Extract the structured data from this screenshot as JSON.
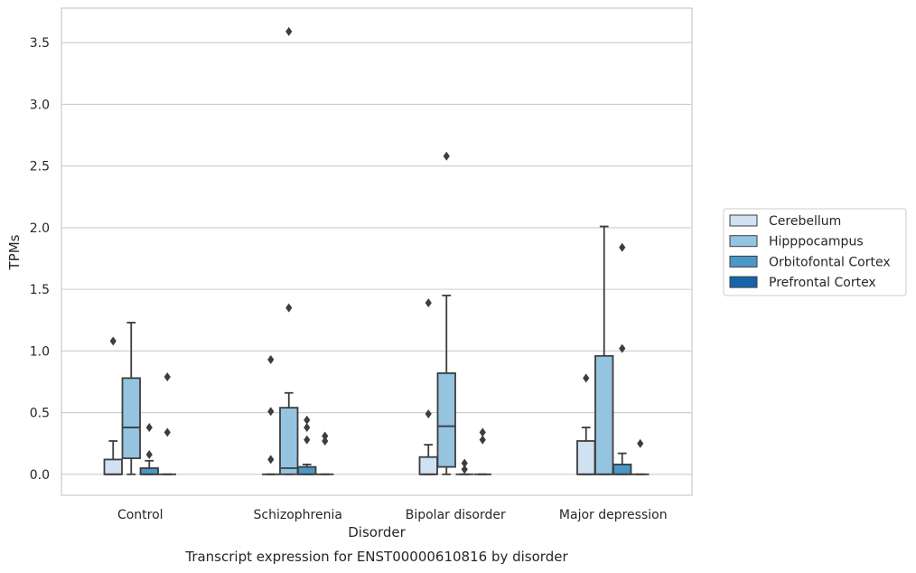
{
  "chart_data": {
    "type": "box",
    "title": "",
    "caption": "Transcript expression for ENST00000610816 by disorder",
    "xlabel": "Disorder",
    "ylabel": "TPMs",
    "ylim": [
      -0.17,
      3.78
    ],
    "yticks": [
      0.0,
      0.5,
      1.0,
      1.5,
      2.0,
      2.5,
      3.0,
      3.5
    ],
    "ytick_labels": [
      "0.0",
      "0.5",
      "1.0",
      "1.5",
      "2.0",
      "2.5",
      "3.0",
      "3.5"
    ],
    "grid": "horizontal",
    "legend_position": "right",
    "categories": [
      "Control",
      "Schizophrenia",
      "Bipolar disorder",
      "Major depression"
    ],
    "series": [
      {
        "name": "Cerebellum",
        "color": "#d0e1f2",
        "boxes": [
          {
            "whislo": 0.0,
            "q1": 0.0,
            "median": 0.0,
            "q3": 0.12,
            "whishi": 0.27,
            "fliers": [
              1.08
            ]
          },
          {
            "whislo": 0.0,
            "q1": 0.0,
            "median": 0.0,
            "q3": 0.0,
            "whishi": 0.0,
            "fliers": [
              0.93,
              0.51,
              0.12
            ]
          },
          {
            "whislo": 0.0,
            "q1": 0.0,
            "median": 0.0,
            "q3": 0.14,
            "whishi": 0.24,
            "fliers": [
              1.39,
              0.49
            ]
          },
          {
            "whislo": 0.0,
            "q1": 0.0,
            "median": 0.0,
            "q3": 0.27,
            "whishi": 0.38,
            "fliers": [
              0.78
            ]
          }
        ]
      },
      {
        "name": "Hipppocampus",
        "color": "#94c4df",
        "boxes": [
          {
            "whislo": 0.0,
            "q1": 0.13,
            "median": 0.38,
            "q3": 0.78,
            "whishi": 1.23,
            "fliers": []
          },
          {
            "whislo": 0.0,
            "q1": 0.0,
            "median": 0.05,
            "q3": 0.54,
            "whishi": 0.66,
            "fliers": [
              3.59,
              1.35
            ]
          },
          {
            "whislo": 0.0,
            "q1": 0.06,
            "median": 0.39,
            "q3": 0.82,
            "whishi": 1.45,
            "fliers": [
              2.58
            ]
          },
          {
            "whislo": 0.0,
            "q1": 0.0,
            "median": 0.0,
            "q3": 0.96,
            "whishi": 2.01,
            "fliers": []
          }
        ]
      },
      {
        "name": "Orbitofontal Cortex",
        "color": "#4a98c9",
        "boxes": [
          {
            "whislo": 0.0,
            "q1": 0.0,
            "median": 0.0,
            "q3": 0.05,
            "whishi": 0.11,
            "fliers": [
              0.38,
              0.16
            ]
          },
          {
            "whislo": 0.0,
            "q1": 0.0,
            "median": 0.0,
            "q3": 0.06,
            "whishi": 0.08,
            "fliers": [
              0.44,
              0.38,
              0.28
            ]
          },
          {
            "whislo": 0.0,
            "q1": 0.0,
            "median": 0.0,
            "q3": 0.0,
            "whishi": 0.0,
            "fliers": [
              0.09,
              0.04
            ]
          },
          {
            "whislo": 0.0,
            "q1": 0.0,
            "median": 0.0,
            "q3": 0.08,
            "whishi": 0.17,
            "fliers": [
              1.84,
              1.02
            ]
          }
        ]
      },
      {
        "name": "Prefrontal Cortex",
        "color": "#1764ab",
        "boxes": [
          {
            "whislo": 0.0,
            "q1": 0.0,
            "median": 0.0,
            "q3": 0.0,
            "whishi": 0.0,
            "fliers": [
              0.79,
              0.34
            ]
          },
          {
            "whislo": 0.0,
            "q1": 0.0,
            "median": 0.0,
            "q3": 0.0,
            "whishi": 0.0,
            "fliers": [
              0.31,
              0.27
            ]
          },
          {
            "whislo": 0.0,
            "q1": 0.0,
            "median": 0.0,
            "q3": 0.0,
            "whishi": 0.0,
            "fliers": [
              0.34,
              0.28
            ]
          },
          {
            "whislo": 0.0,
            "q1": 0.0,
            "median": 0.0,
            "q3": 0.0,
            "whishi": 0.0,
            "fliers": [
              0.25
            ]
          }
        ]
      }
    ]
  }
}
